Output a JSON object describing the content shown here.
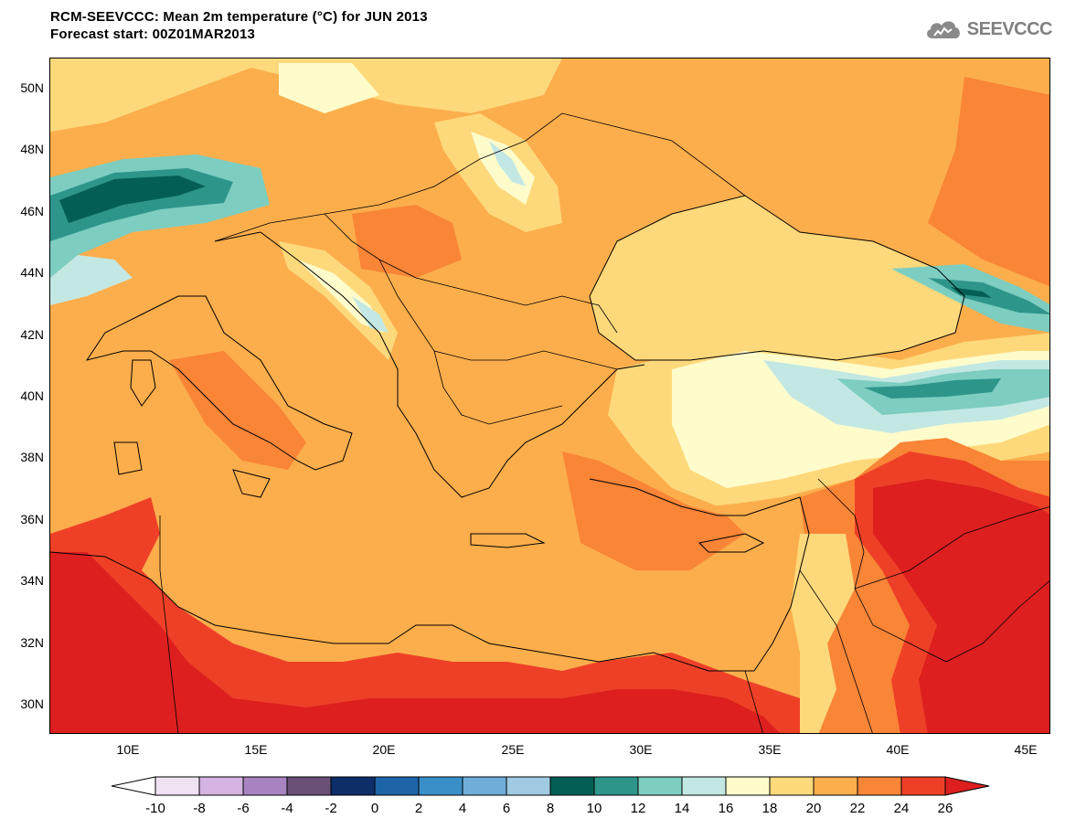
{
  "header": {
    "title": "RCM-SEEVCCC: Mean 2m temperature (°C) for JUN 2013",
    "subtitle": "Forecast start: 00Z01MAR2013"
  },
  "logo": {
    "text": "SEEVCCC",
    "icon": "cloud-icon"
  },
  "map": {
    "region": "Eastern Mediterranean / Balkans / Black Sea",
    "lon_range": [
      7,
      46
    ],
    "lat_range": [
      29,
      51
    ],
    "lat_ticks": [
      "50N",
      "48N",
      "46N",
      "44N",
      "42N",
      "40N",
      "38N",
      "36N",
      "34N",
      "32N",
      "30N"
    ],
    "lon_ticks": [
      "10E",
      "15E",
      "20E",
      "25E",
      "30E",
      "35E",
      "40E",
      "45E"
    ]
  },
  "colorbar": {
    "labels": [
      "-10",
      "-8",
      "-6",
      "-4",
      "-2",
      "0",
      "2",
      "4",
      "6",
      "8",
      "10",
      "12",
      "14",
      "16",
      "18",
      "20",
      "22",
      "24",
      "26"
    ],
    "colors": [
      "#ffffff",
      "#efe3f3",
      "#d5b3e2",
      "#a883c1",
      "#6a4f77",
      "#0e2e6a",
      "#1d65a8",
      "#3b8fc8",
      "#6faed8",
      "#9fcae2",
      "#035f55",
      "#2e958b",
      "#7dcdc1",
      "#c3e8e3",
      "#fffccc",
      "#fed97b",
      "#fcae4c",
      "#f98537",
      "#ee4027",
      "#dd1f1f"
    ]
  }
}
